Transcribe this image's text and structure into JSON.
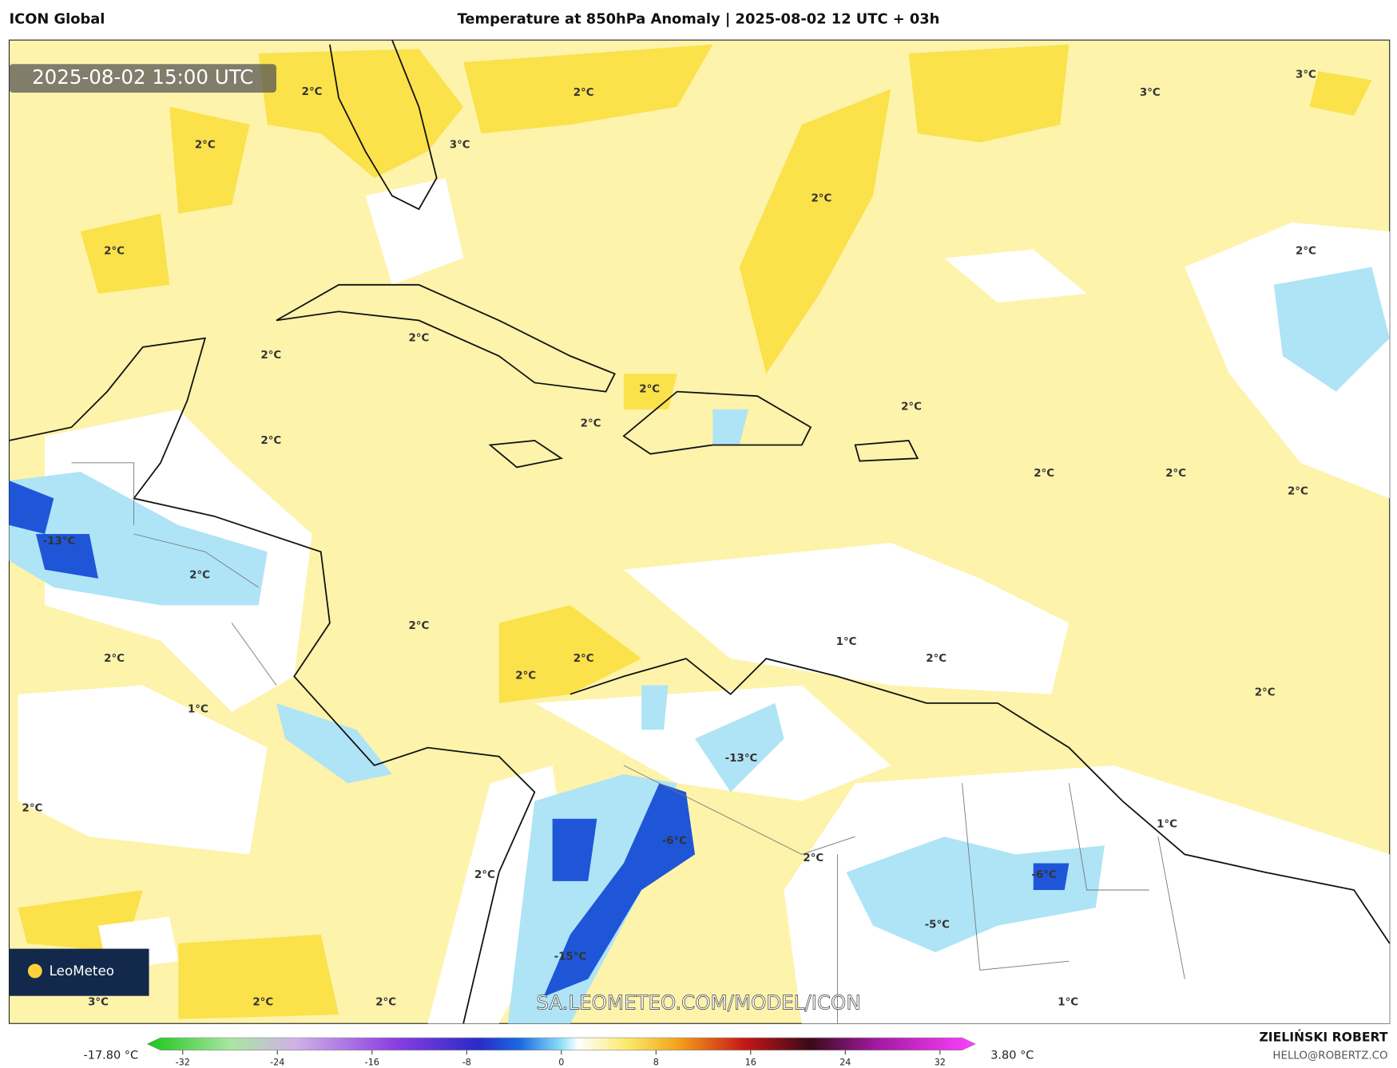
{
  "header": {
    "model": "ICON Global",
    "title": "Temperature at 850hPa Anomaly | 2025-08-02 12 UTC + 03h"
  },
  "map": {
    "timestamp": "2025-08-02 15:00 UTC",
    "watermark": "SA.LEOMETEO.COM/MODEL/ICON",
    "logo": "LeoMeteo",
    "labels": [
      "2°C",
      "2°C",
      "3°C",
      "3°C",
      "2°C",
      "3°C",
      "2°C",
      "2°C",
      "2°C",
      "2°C",
      "2°C",
      "2°C",
      "2°C",
      "2°C",
      "2°C",
      "2°C",
      "2°C",
      "2°C",
      "-13°C",
      "2°C",
      "2°C",
      "1°C",
      "2°C",
      "2°C",
      "2°C",
      "2°C",
      "2°C",
      "1°C",
      "-13°C",
      "2°C",
      "1°C",
      "-6°C",
      "2°C",
      "-6°C",
      "2°C",
      "-5°C",
      "-15°C",
      "3°C",
      "2°C",
      "2°C",
      "1°C"
    ]
  },
  "colorbar": {
    "min_label": "-17.80 °C",
    "max_label": "3.80 °C",
    "range": [
      -35,
      35
    ],
    "ticks": [
      -32,
      -24,
      -16,
      -8,
      0,
      8,
      16,
      24,
      32
    ]
  },
  "footer": {
    "author": "ZIELIŃSKI ROBERT",
    "email": "HELLO@ROBERTZ.CO"
  }
}
